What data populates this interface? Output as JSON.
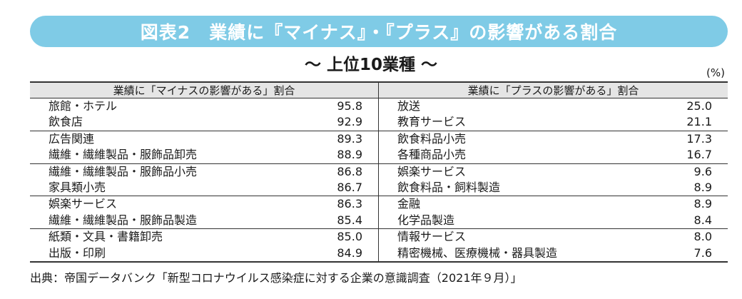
{
  "title": "図表2　業績に『マイナス』・『プラス』の影響がある割合",
  "subtitle": "～ 上位10業種 ～",
  "unit": "(%)",
  "left_table": {
    "header": "業績に「マイナスの影響がある」割合",
    "groups": [
      {
        "rows": [
          {
            "name": "旅館・ホテル",
            "value": "95.8"
          },
          {
            "name": "飲食店",
            "value": "92.9"
          }
        ]
      },
      {
        "rows": [
          {
            "name": "広告関連",
            "value": "89.3"
          },
          {
            "name": "繊維・繊維製品・服飾品卸売",
            "value": "88.9"
          }
        ]
      },
      {
        "rows": [
          {
            "name": "繊維・繊維製品・服飾品小売",
            "value": "86.8"
          },
          {
            "name": "家具類小売",
            "value": "86.7"
          }
        ]
      },
      {
        "rows": [
          {
            "name": "娯楽サービス",
            "value": "86.3"
          },
          {
            "name": "繊維・繊維製品・服飾品製造",
            "value": "85.4"
          }
        ]
      },
      {
        "rows": [
          {
            "name": "紙類・文具・書籍卸売",
            "value": "85.0"
          },
          {
            "name": "出版・印刷",
            "value": "84.9"
          }
        ]
      }
    ]
  },
  "right_table": {
    "header": "業績に「プラスの影響がある」割合",
    "groups": [
      {
        "rows": [
          {
            "name": "放送",
            "value": "25.0"
          },
          {
            "name": "教育サービス",
            "value": "21.1"
          }
        ]
      },
      {
        "rows": [
          {
            "name": "飲食料品小売",
            "value": "17.3"
          },
          {
            "name": "各種商品小売",
            "value": "16.7"
          }
        ]
      },
      {
        "rows": [
          {
            "name": "娯楽サービス",
            "value": "9.6"
          },
          {
            "name": "飲食料品・飼料製造",
            "value": "8.9"
          }
        ]
      },
      {
        "rows": [
          {
            "name": "金融",
            "value": "8.9"
          },
          {
            "name": "化学品製造",
            "value": "8.4"
          }
        ]
      },
      {
        "rows": [
          {
            "name": "情報サービス",
            "value": "8.0"
          },
          {
            "name": "精密機械、医療機械・器具製造",
            "value": "7.6"
          }
        ]
      }
    ]
  },
  "source": "出典：帝国データバンク「新型コロナウイルス感染症に対する企業の意識調査（2021年９月）」",
  "colors": {
    "banner": "#7fcbe6",
    "header_bg": "#e5e5e5"
  }
}
